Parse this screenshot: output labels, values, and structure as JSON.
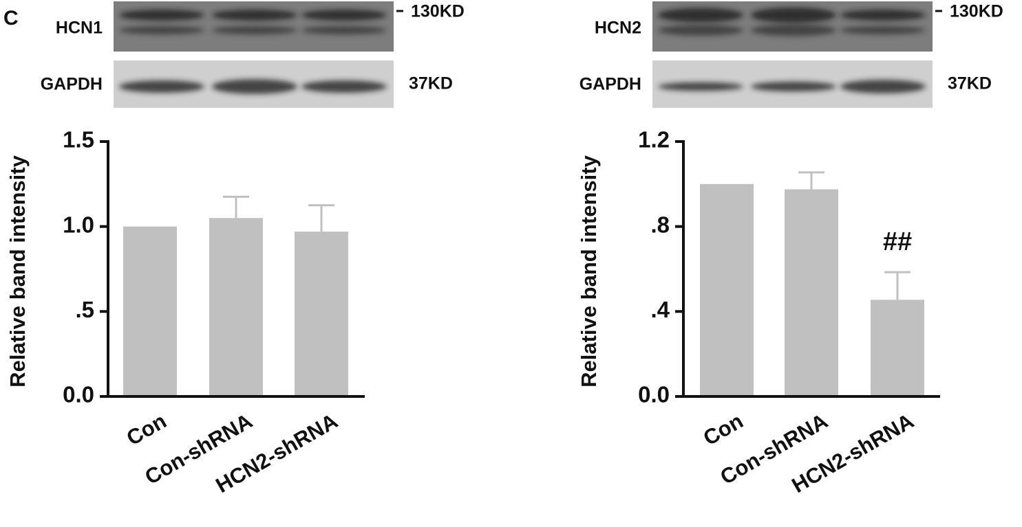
{
  "chart_data": [
    {
      "type": "bar",
      "panel_label": "C",
      "y_label": "Relative band intensity",
      "blots": [
        {
          "label": "HCN1",
          "marker": "130KD"
        },
        {
          "label": "GAPDH",
          "marker": "37KD"
        }
      ],
      "categories": [
        "Con",
        "Con-shRNA",
        "HCN2-shRNA"
      ],
      "values": [
        1.0,
        1.05,
        0.97
      ],
      "errors": [
        0,
        0.125,
        0.155
      ],
      "color": "#c0c0c0",
      "ylim": [
        0,
        1.5
      ],
      "yticks": [
        {
          "value": 0,
          "label": "0.0"
        },
        {
          "value": 0.5,
          "label": ".5"
        },
        {
          "value": 1.0,
          "label": "1.0"
        },
        {
          "value": 1.5,
          "label": "1.5"
        }
      ]
    },
    {
      "type": "bar",
      "y_label": "Relative band intensity",
      "blots": [
        {
          "label": "HCN2",
          "marker": "130KD"
        },
        {
          "label": "GAPDH",
          "marker": "37KD"
        }
      ],
      "categories": [
        "Con",
        "Con-shRNA",
        "HCN2-shRNA"
      ],
      "values": [
        1.0,
        0.975,
        0.455
      ],
      "errors": [
        0,
        0.08,
        0.13
      ],
      "color": "#c0c0c0",
      "ylim": [
        0,
        1.2
      ],
      "yticks": [
        {
          "value": 0,
          "label": "0.0"
        },
        {
          "value": 0.4,
          "label": ".4"
        },
        {
          "value": 0.8,
          "label": ".8"
        },
        {
          "value": 1.2,
          "label": "1.2"
        }
      ],
      "annotations": [
        {
          "text": "##",
          "x": "HCN2-shRNA"
        }
      ]
    }
  ]
}
